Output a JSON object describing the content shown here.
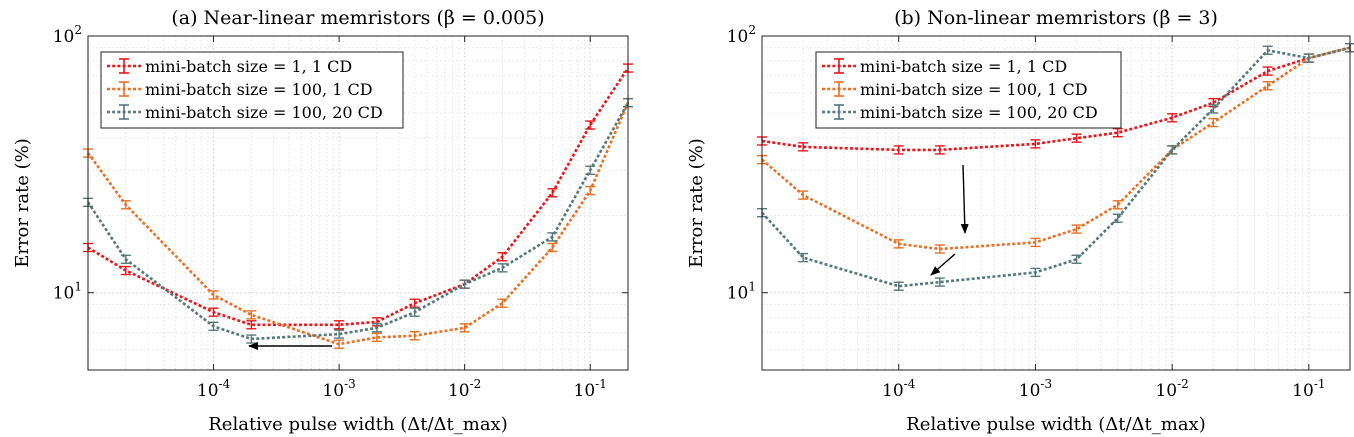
{
  "chart_data": [
    {
      "type": "line",
      "title": "(a) Near-linear memristors (β = 0.005)",
      "xlabel": "Relative pulse width (Δt/Δt_max)",
      "ylabel": "Error rate (%)",
      "xscale": "log",
      "yscale": "log",
      "xlim": [
        1e-05,
        0.2
      ],
      "ylim": [
        5,
        100
      ],
      "x_tick_labels": [
        "10^-4",
        "10^-3",
        "10^-2",
        "10^-1"
      ],
      "y_tick_labels": [
        "10^1",
        "10^2"
      ],
      "grid": "major and minor, dotted",
      "legend_position": "top-left",
      "annotation": "arrow pointing left",
      "x": [
        1e-05,
        2e-05,
        0.0001,
        0.0002,
        0.001,
        0.002,
        0.004,
        0.01,
        0.02,
        0.05,
        0.1,
        0.2
      ],
      "series": [
        {
          "name": "mini-batch size = 1, 1 CD",
          "color": "#e8151b",
          "values": [
            15.0,
            12.2,
            8.4,
            7.5,
            7.5,
            7.7,
            9.1,
            10.8,
            13.8,
            24.5,
            45.0,
            75.0
          ]
        },
        {
          "name": "mini-batch size = 100, 1 CD",
          "color": "#e87025",
          "values": [
            35.0,
            22.0,
            9.8,
            8.2,
            6.3,
            6.7,
            6.8,
            7.3,
            9.1,
            15.0,
            25.0,
            55.0
          ]
        },
        {
          "name": "mini-batch size = 100, 20 CD",
          "color": "#557878",
          "values": [
            22.5,
            13.5,
            7.4,
            6.6,
            6.9,
            7.3,
            8.4,
            10.8,
            12.5,
            16.5,
            30.0,
            55.0
          ]
        }
      ]
    },
    {
      "type": "line",
      "title": "(b) Non-linear memristors (β = 3)",
      "xlabel": "Relative pulse width (Δt/Δt_max)",
      "ylabel": "Error rate (%)",
      "xscale": "log",
      "yscale": "log",
      "xlim": [
        1e-05,
        0.2
      ],
      "ylim": [
        5,
        100
      ],
      "x_tick_labels": [
        "10^-4",
        "10^-3",
        "10^-2",
        "10^-1"
      ],
      "y_tick_labels": [
        "10^1",
        "10^2"
      ],
      "grid": "major and minor, dotted",
      "legend_position": "top-left",
      "annotation": "arrows pointing down toward the minima",
      "x": [
        1e-05,
        2e-05,
        0.0001,
        0.0002,
        0.001,
        0.002,
        0.004,
        0.01,
        0.02,
        0.05,
        0.1,
        0.2
      ],
      "series": [
        {
          "name": "mini-batch size = 1, 1 CD",
          "color": "#e8151b",
          "values": [
            39.0,
            37.0,
            36.0,
            36.0,
            38.0,
            40.0,
            42.0,
            48.0,
            55.0,
            73.0,
            82.0,
            90.0
          ]
        },
        {
          "name": "mini-batch size = 100, 1 CD",
          "color": "#e87025",
          "values": [
            33.0,
            24.0,
            15.5,
            14.8,
            15.7,
            17.7,
            22.0,
            36.0,
            46.0,
            64.0,
            82.0,
            90.0
          ]
        },
        {
          "name": "mini-batch size = 100, 20 CD",
          "color": "#557878",
          "values": [
            20.5,
            13.7,
            10.6,
            11.0,
            12.0,
            13.5,
            19.5,
            36.0,
            52.0,
            88.0,
            82.0,
            90.0
          ]
        }
      ]
    }
  ]
}
